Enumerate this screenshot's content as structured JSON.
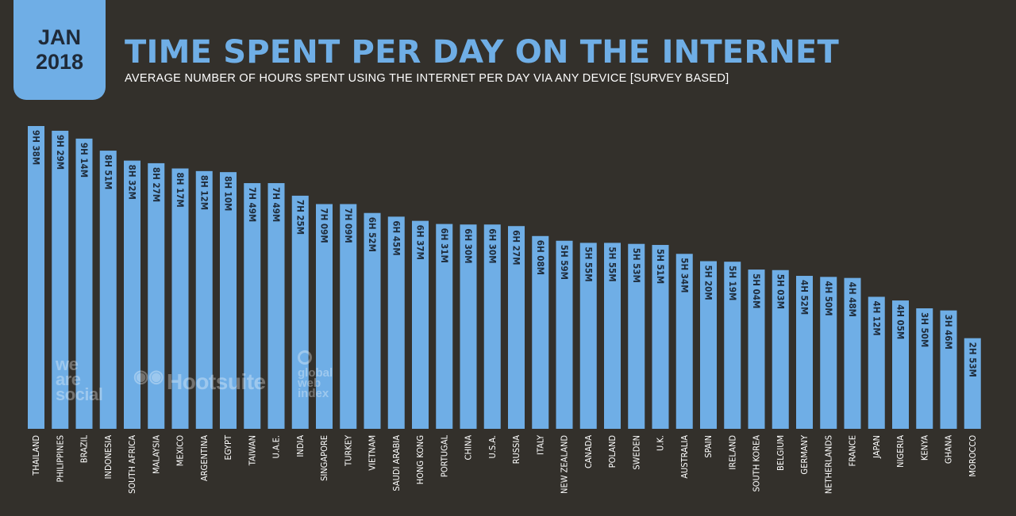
{
  "badge": {
    "month": "JAN",
    "year": "2018"
  },
  "header": {
    "title": "TIME SPENT PER DAY ON THE INTERNET",
    "subtitle": "AVERAGE NUMBER OF HOURS SPENT USING THE INTERNET PER DAY VIA ANY DEVICE [SURVEY BASED]"
  },
  "logos": {
    "we_are_social": [
      "we",
      "are",
      "social"
    ],
    "hootsuite": "Hootsuite",
    "globalwebindex": [
      "global",
      "web",
      "index"
    ]
  },
  "colors": {
    "background": "#33302b",
    "bar": "#6faee6",
    "value_text": "#1e2b3a",
    "accent": "#6faee6"
  },
  "chart_data": {
    "type": "bar",
    "unit": "minutes per day",
    "categories": [
      "THAILAND",
      "PHILIPPINES",
      "BRAZIL",
      "INDONESIA",
      "SOUTH AFRICA",
      "MALAYSIA",
      "MEXICO",
      "ARGENTINA",
      "EGYPT",
      "TAIWAN",
      "U.A.E.",
      "INDIA",
      "SINGAPORE",
      "TURKEY",
      "VIETNAM",
      "SAUDI ARABIA",
      "HONG KONG",
      "PORTUGAL",
      "CHINA",
      "U.S.A.",
      "RUSSIA",
      "ITALY",
      "NEW ZEALAND",
      "CANADA",
      "POLAND",
      "SWEDEN",
      "U.K.",
      "AUSTRALIA",
      "SPAIN",
      "IRELAND",
      "SOUTH KOREA",
      "BELGIUM",
      "GERMANY",
      "NETHERLANDS",
      "FRANCE",
      "JAPAN",
      "NIGERIA",
      "KENYA",
      "GHANA",
      "MOROCCO"
    ],
    "values": [
      578,
      569,
      554,
      531,
      512,
      507,
      497,
      492,
      490,
      469,
      469,
      445,
      429,
      429,
      412,
      405,
      397,
      391,
      390,
      390,
      387,
      368,
      359,
      355,
      355,
      353,
      351,
      334,
      320,
      319,
      304,
      303,
      292,
      290,
      288,
      252,
      245,
      230,
      226,
      173
    ],
    "labels": [
      "9H 38M",
      "9H 29M",
      "9H 14M",
      "8H 51M",
      "8H 32M",
      "8H 27M",
      "8H 17M",
      "8H 12M",
      "8H 10M",
      "7H 49M",
      "7H 49M",
      "7H 25M",
      "7H 09M",
      "7H 09M",
      "6H 52M",
      "6H 45M",
      "6H 37M",
      "6H 31M",
      "6H 30M",
      "6H 30M",
      "6H 27M",
      "6H 08M",
      "5H 59M",
      "5H 55M",
      "5H 55M",
      "5H 53M",
      "5H 51M",
      "5H 34M",
      "5H 20M",
      "5H 19M",
      "5H 04M",
      "5H 03M",
      "4H 52M",
      "4H 50M",
      "4H 48M",
      "4H 12M",
      "4H 05M",
      "3H 50M",
      "3H 46M",
      "2H 53M"
    ],
    "grid": false,
    "legend": "none"
  }
}
